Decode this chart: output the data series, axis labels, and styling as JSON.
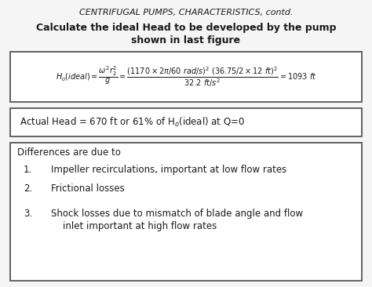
{
  "title_line1": "CENTRIFUGAL PUMPS, CHARACTERISTICS, contd.",
  "subtitle": "Calculate the ideal Head to be developed by the pump\nshown in last figure",
  "actual_head_text": "Actual Head = 670 ft or 61% of H$_o$(ideal) at Q=0",
  "diff_title": "Differences are due to",
  "diff_items": [
    "Impeller recirculations, important at low flow rates",
    "Frictional losses",
    "Shock losses due to mismatch of blade angle and flow\ninlet important at high flow rates"
  ],
  "bg_color": "#f5f5f5",
  "text_color": "#1a1a1a",
  "box_edge_color": "#555555",
  "box_bg": "#ffffff"
}
